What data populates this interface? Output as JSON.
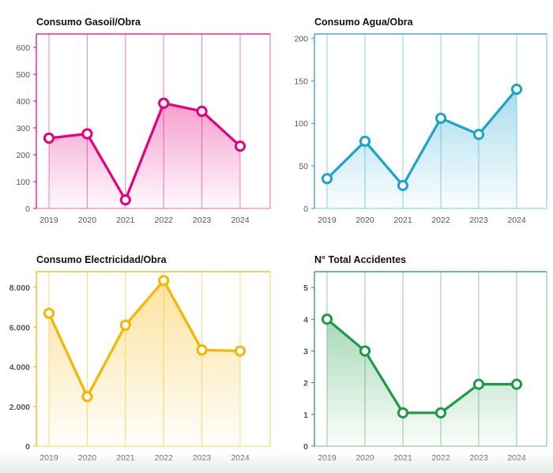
{
  "chart_data": [
    {
      "type": "line",
      "title": "Consumo Gasoil/Obra",
      "categories": [
        "2019",
        "2020",
        "2021",
        "2022",
        "2023",
        "2024"
      ],
      "values": [
        262,
        278,
        32,
        392,
        362,
        232
      ],
      "ylim": [
        0,
        650
      ],
      "yticks": [
        0,
        100,
        200,
        300,
        400,
        500,
        600
      ],
      "ytick_labels": [
        "0",
        "100",
        "200",
        "300",
        "400",
        "500",
        "600"
      ],
      "color": "#e6007e",
      "grid": true,
      "xlabel": "",
      "ylabel": ""
    },
    {
      "type": "line",
      "title": "Consumo Agua/Obra",
      "categories": [
        "2019",
        "2020",
        "2021",
        "2022",
        "2023",
        "2024"
      ],
      "values": [
        35,
        79,
        27,
        106,
        87,
        140
      ],
      "ylim": [
        0,
        205
      ],
      "yticks": [
        0,
        50,
        100,
        150,
        200
      ],
      "ytick_labels": [
        "0",
        "50",
        "100",
        "150",
        "200"
      ],
      "color": "#1aa3cc",
      "grid": true,
      "xlabel": "",
      "ylabel": ""
    },
    {
      "type": "line",
      "title": "Consumo Electricidad/Obra",
      "categories": [
        "2019",
        "2020",
        "2021",
        "2022",
        "2023",
        "2024"
      ],
      "values": [
        6700,
        2500,
        6100,
        8350,
        4850,
        4800
      ],
      "ylim": [
        0,
        8800
      ],
      "yticks": [
        0,
        2000,
        4000,
        6000,
        8000
      ],
      "ytick_labels": [
        "0",
        "2.000",
        "4.000",
        "6.000",
        "8.000"
      ],
      "color": "#f7b500",
      "grid": true,
      "xlabel": "",
      "ylabel": ""
    },
    {
      "type": "line",
      "title": "N° Total Accidentes",
      "categories": [
        "2019",
        "2020",
        "2021",
        "2022",
        "2023",
        "2024"
      ],
      "values": [
        4,
        3,
        1.05,
        1.05,
        1.95,
        1.95
      ],
      "ylim": [
        0,
        5.5
      ],
      "yticks": [
        0,
        1,
        2,
        3,
        4,
        5
      ],
      "ytick_labels": [
        "0",
        "1",
        "2",
        "3",
        "4",
        "5"
      ],
      "color": "#1f9a45",
      "grid": true,
      "xlabel": "",
      "ylabel": ""
    }
  ]
}
